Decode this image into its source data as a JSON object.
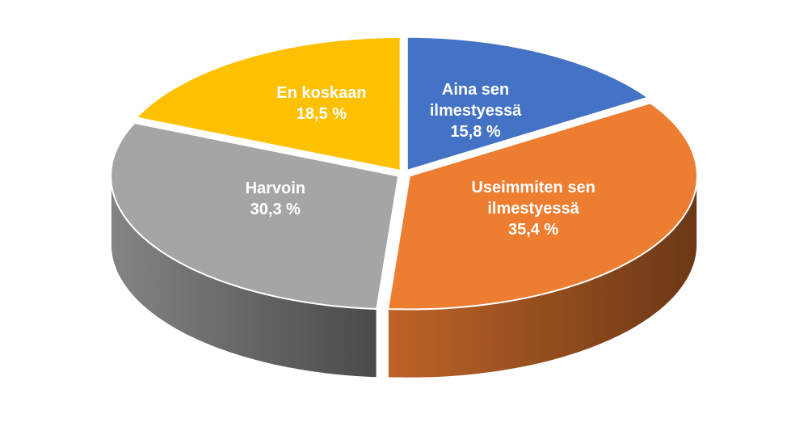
{
  "chart_data": {
    "type": "pie",
    "categories": [
      "Aina sen ilmestyessä",
      "Useimmiten sen ilmestyessä",
      "Harvoin",
      "En koskaan"
    ],
    "values": [
      15.8,
      35.4,
      30.3,
      18.5
    ],
    "value_labels": [
      "15,8 %",
      "35,4 %",
      "30,3 %",
      "18,5 %"
    ],
    "colors": [
      "#4472c4",
      "#ed7d31",
      "#a5a5a5",
      "#ffc000"
    ]
  }
}
